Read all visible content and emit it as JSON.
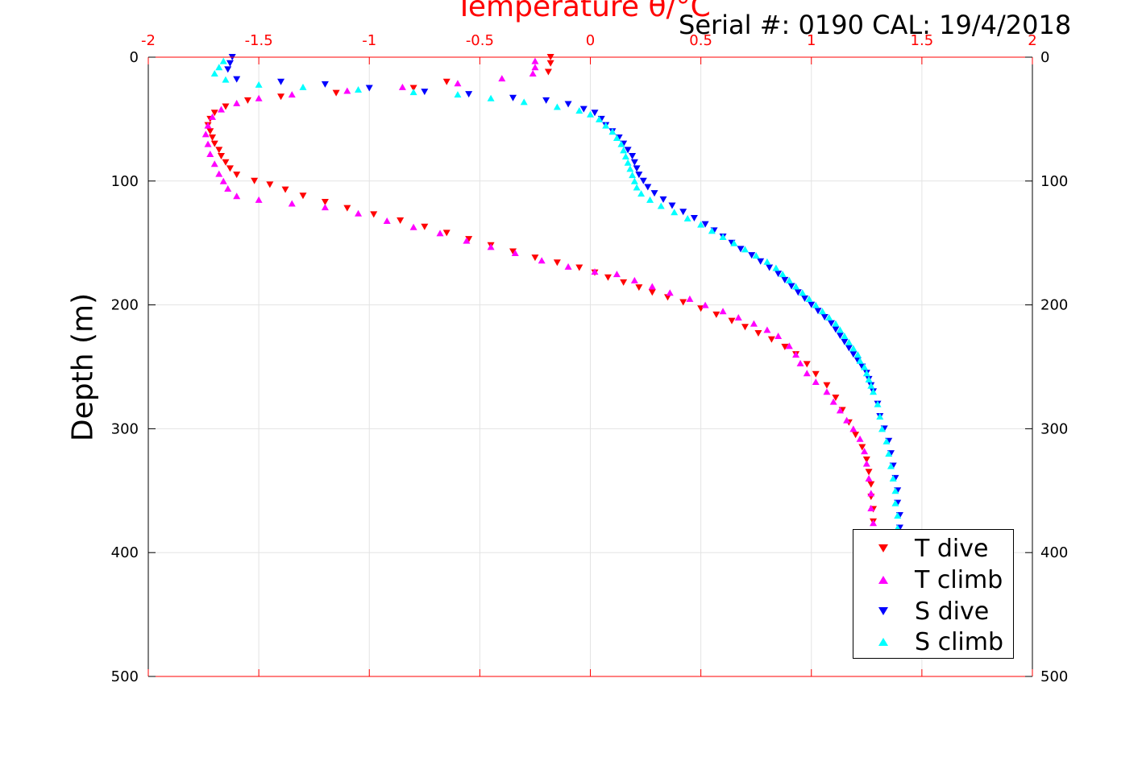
{
  "chart_data": {
    "type": "scatter",
    "title": "Temperature θ/°C",
    "annotation": "Serial #: 0190  CAL: 19/4/2018",
    "xlabel": "Temperature θ/°C",
    "ylabel": "Depth (m)",
    "xlim": [
      -2,
      2
    ],
    "ylim": [
      0,
      500
    ],
    "y_reversed": true,
    "x_ticks": [
      "-2",
      "-1.5",
      "-1",
      "-0.5",
      "0",
      "0.5",
      "1",
      "1.5",
      "2"
    ],
    "x_tick_values": [
      -2,
      -1.5,
      -1,
      -0.5,
      0,
      0.5,
      1,
      1.5,
      2
    ],
    "y_ticks": [
      "0",
      "100",
      "200",
      "300",
      "400",
      "500"
    ],
    "y_tick_values": [
      0,
      100,
      200,
      300,
      400,
      500
    ],
    "grid": true,
    "legend_position": "bottom-right",
    "series": [
      {
        "name": "T dive",
        "color": "#ff0000",
        "marker": "triangle-down",
        "points": [
          [
            -0.18,
            0
          ],
          [
            -0.18,
            5
          ],
          [
            -0.19,
            12
          ],
          [
            -0.65,
            20
          ],
          [
            -0.8,
            25
          ],
          [
            -1.15,
            29
          ],
          [
            -1.4,
            32
          ],
          [
            -1.55,
            35
          ],
          [
            -1.65,
            40
          ],
          [
            -1.7,
            45
          ],
          [
            -1.72,
            50
          ],
          [
            -1.73,
            55
          ],
          [
            -1.72,
            60
          ],
          [
            -1.71,
            65
          ],
          [
            -1.7,
            70
          ],
          [
            -1.68,
            75
          ],
          [
            -1.67,
            80
          ],
          [
            -1.65,
            85
          ],
          [
            -1.63,
            90
          ],
          [
            -1.6,
            95
          ],
          [
            -1.52,
            100
          ],
          [
            -1.45,
            103
          ],
          [
            -1.38,
            107
          ],
          [
            -1.3,
            112
          ],
          [
            -1.2,
            117
          ],
          [
            -1.1,
            122
          ],
          [
            -0.98,
            127
          ],
          [
            -0.86,
            132
          ],
          [
            -0.75,
            137
          ],
          [
            -0.65,
            142
          ],
          [
            -0.55,
            147
          ],
          [
            -0.45,
            152
          ],
          [
            -0.35,
            157
          ],
          [
            -0.25,
            162
          ],
          [
            -0.15,
            166
          ],
          [
            -0.05,
            170
          ],
          [
            0.02,
            174
          ],
          [
            0.08,
            178
          ],
          [
            0.15,
            182
          ],
          [
            0.22,
            186
          ],
          [
            0.28,
            190
          ],
          [
            0.35,
            194
          ],
          [
            0.42,
            198
          ],
          [
            0.5,
            203
          ],
          [
            0.57,
            208
          ],
          [
            0.64,
            213
          ],
          [
            0.7,
            218
          ],
          [
            0.76,
            223
          ],
          [
            0.82,
            228
          ],
          [
            0.88,
            234
          ],
          [
            0.93,
            240
          ],
          [
            0.98,
            248
          ],
          [
            1.02,
            256
          ],
          [
            1.07,
            265
          ],
          [
            1.11,
            275
          ],
          [
            1.14,
            285
          ],
          [
            1.17,
            295
          ],
          [
            1.2,
            305
          ],
          [
            1.23,
            315
          ],
          [
            1.25,
            325
          ],
          [
            1.26,
            335
          ],
          [
            1.27,
            345
          ],
          [
            1.27,
            355
          ],
          [
            1.28,
            365
          ],
          [
            1.28,
            375
          ],
          [
            1.28,
            385
          ]
        ]
      },
      {
        "name": "T climb",
        "color": "#ff00ff",
        "marker": "triangle-up",
        "points": [
          [
            -0.25,
            3
          ],
          [
            -0.25,
            8
          ],
          [
            -0.26,
            13
          ],
          [
            -0.4,
            17
          ],
          [
            -0.6,
            21
          ],
          [
            -0.85,
            24
          ],
          [
            -1.1,
            27
          ],
          [
            -1.35,
            30
          ],
          [
            -1.5,
            33
          ],
          [
            -1.6,
            37
          ],
          [
            -1.67,
            42
          ],
          [
            -1.71,
            48
          ],
          [
            -1.73,
            55
          ],
          [
            -1.74,
            62
          ],
          [
            -1.73,
            70
          ],
          [
            -1.72,
            78
          ],
          [
            -1.7,
            86
          ],
          [
            -1.68,
            94
          ],
          [
            -1.66,
            100
          ],
          [
            -1.64,
            106
          ],
          [
            -1.6,
            112
          ],
          [
            -1.5,
            115
          ],
          [
            -1.35,
            118
          ],
          [
            -1.2,
            121
          ],
          [
            -1.05,
            126
          ],
          [
            -0.92,
            132
          ],
          [
            -0.8,
            137
          ],
          [
            -0.68,
            142
          ],
          [
            -0.56,
            148
          ],
          [
            -0.45,
            153
          ],
          [
            -0.34,
            158
          ],
          [
            -0.22,
            164
          ],
          [
            -0.1,
            169
          ],
          [
            0.02,
            173
          ],
          [
            0.12,
            175
          ],
          [
            0.2,
            180
          ],
          [
            0.28,
            185
          ],
          [
            0.36,
            190
          ],
          [
            0.45,
            195
          ],
          [
            0.52,
            200
          ],
          [
            0.6,
            205
          ],
          [
            0.67,
            210
          ],
          [
            0.74,
            215
          ],
          [
            0.8,
            220
          ],
          [
            0.85,
            225
          ],
          [
            0.9,
            233
          ],
          [
            0.93,
            240
          ],
          [
            0.95,
            247
          ],
          [
            0.98,
            255
          ],
          [
            1.02,
            262
          ],
          [
            1.07,
            270
          ],
          [
            1.1,
            278
          ],
          [
            1.13,
            285
          ],
          [
            1.16,
            293
          ],
          [
            1.19,
            300
          ],
          [
            1.22,
            308
          ],
          [
            1.24,
            318
          ],
          [
            1.25,
            328
          ],
          [
            1.26,
            340
          ],
          [
            1.27,
            352
          ],
          [
            1.27,
            364
          ],
          [
            1.28,
            376
          ],
          [
            1.28,
            385
          ]
        ]
      },
      {
        "name": "S dive",
        "color": "#0000ff",
        "marker": "triangle-down",
        "points": [
          [
            -1.62,
            0
          ],
          [
            -1.63,
            5
          ],
          [
            -1.64,
            10
          ],
          [
            -1.6,
            18
          ],
          [
            -1.4,
            20
          ],
          [
            -1.2,
            22
          ],
          [
            -1.0,
            25
          ],
          [
            -0.75,
            28
          ],
          [
            -0.55,
            30
          ],
          [
            -0.35,
            33
          ],
          [
            -0.2,
            35
          ],
          [
            -0.1,
            38
          ],
          [
            -0.03,
            42
          ],
          [
            0.02,
            45
          ],
          [
            0.05,
            50
          ],
          [
            0.07,
            55
          ],
          [
            0.1,
            60
          ],
          [
            0.13,
            65
          ],
          [
            0.15,
            70
          ],
          [
            0.17,
            75
          ],
          [
            0.19,
            80
          ],
          [
            0.2,
            85
          ],
          [
            0.21,
            90
          ],
          [
            0.22,
            95
          ],
          [
            0.24,
            100
          ],
          [
            0.26,
            105
          ],
          [
            0.29,
            110
          ],
          [
            0.33,
            115
          ],
          [
            0.37,
            120
          ],
          [
            0.42,
            125
          ],
          [
            0.47,
            130
          ],
          [
            0.52,
            135
          ],
          [
            0.56,
            140
          ],
          [
            0.6,
            145
          ],
          [
            0.64,
            150
          ],
          [
            0.68,
            155
          ],
          [
            0.73,
            160
          ],
          [
            0.77,
            165
          ],
          [
            0.81,
            170
          ],
          [
            0.85,
            175
          ],
          [
            0.88,
            180
          ],
          [
            0.91,
            185
          ],
          [
            0.94,
            190
          ],
          [
            0.97,
            195
          ],
          [
            1.0,
            200
          ],
          [
            1.03,
            205
          ],
          [
            1.06,
            210
          ],
          [
            1.09,
            215
          ],
          [
            1.11,
            220
          ],
          [
            1.13,
            225
          ],
          [
            1.15,
            230
          ],
          [
            1.17,
            235
          ],
          [
            1.19,
            240
          ],
          [
            1.21,
            245
          ],
          [
            1.23,
            250
          ],
          [
            1.25,
            255
          ],
          [
            1.26,
            260
          ],
          [
            1.27,
            265
          ],
          [
            1.28,
            270
          ],
          [
            1.3,
            280
          ],
          [
            1.31,
            290
          ],
          [
            1.33,
            300
          ],
          [
            1.35,
            310
          ],
          [
            1.36,
            320
          ],
          [
            1.37,
            330
          ],
          [
            1.38,
            340
          ],
          [
            1.39,
            350
          ],
          [
            1.39,
            360
          ],
          [
            1.4,
            370
          ],
          [
            1.4,
            380
          ]
        ]
      },
      {
        "name": "S climb",
        "color": "#00ffff",
        "marker": "triangle-up",
        "points": [
          [
            -1.66,
            3
          ],
          [
            -1.68,
            8
          ],
          [
            -1.7,
            13
          ],
          [
            -1.65,
            18
          ],
          [
            -1.5,
            22
          ],
          [
            -1.3,
            24
          ],
          [
            -1.05,
            26
          ],
          [
            -0.8,
            28
          ],
          [
            -0.6,
            30
          ],
          [
            -0.45,
            33
          ],
          [
            -0.3,
            36
          ],
          [
            -0.15,
            40
          ],
          [
            -0.05,
            43
          ],
          [
            0.0,
            46
          ],
          [
            0.04,
            50
          ],
          [
            0.07,
            55
          ],
          [
            0.1,
            60
          ],
          [
            0.12,
            65
          ],
          [
            0.14,
            70
          ],
          [
            0.15,
            75
          ],
          [
            0.16,
            80
          ],
          [
            0.17,
            85
          ],
          [
            0.18,
            90
          ],
          [
            0.19,
            95
          ],
          [
            0.2,
            100
          ],
          [
            0.21,
            105
          ],
          [
            0.23,
            110
          ],
          [
            0.27,
            115
          ],
          [
            0.32,
            120
          ],
          [
            0.38,
            125
          ],
          [
            0.44,
            130
          ],
          [
            0.5,
            135
          ],
          [
            0.55,
            140
          ],
          [
            0.6,
            145
          ],
          [
            0.65,
            150
          ],
          [
            0.7,
            155
          ],
          [
            0.75,
            160
          ],
          [
            0.8,
            165
          ],
          [
            0.84,
            170
          ],
          [
            0.87,
            175
          ],
          [
            0.9,
            180
          ],
          [
            0.93,
            185
          ],
          [
            0.96,
            190
          ],
          [
            0.99,
            195
          ],
          [
            1.02,
            200
          ],
          [
            1.05,
            205
          ],
          [
            1.08,
            210
          ],
          [
            1.11,
            215
          ],
          [
            1.13,
            220
          ],
          [
            1.15,
            225
          ],
          [
            1.17,
            230
          ],
          [
            1.19,
            235
          ],
          [
            1.21,
            240
          ],
          [
            1.22,
            245
          ],
          [
            1.24,
            250
          ],
          [
            1.25,
            255
          ],
          [
            1.26,
            260
          ],
          [
            1.27,
            265
          ],
          [
            1.28,
            270
          ],
          [
            1.3,
            280
          ],
          [
            1.31,
            290
          ],
          [
            1.32,
            300
          ],
          [
            1.34,
            310
          ],
          [
            1.35,
            320
          ],
          [
            1.36,
            330
          ],
          [
            1.37,
            340
          ],
          [
            1.38,
            350
          ],
          [
            1.38,
            360
          ],
          [
            1.39,
            370
          ],
          [
            1.39,
            380
          ]
        ]
      }
    ]
  }
}
